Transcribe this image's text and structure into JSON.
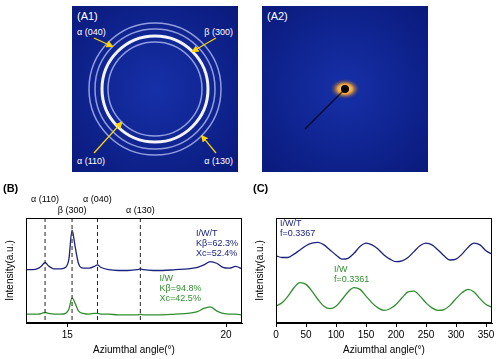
{
  "images": [
    {
      "label": "(A1)",
      "annotations": [
        "α (040)",
        "β (300)",
        "α (110)",
        "α (130)"
      ]
    },
    {
      "label": "(A2)"
    }
  ],
  "chart_data": [
    {
      "type": "line",
      "panel_label": "(B)",
      "x_label": "Aziumthal angle(°)",
      "y_label": "Intensity(a.u.)",
      "x": [
        13.7,
        13.9,
        14.1,
        14.2,
        14.3,
        14.4,
        14.6,
        14.8,
        14.95,
        15.05,
        15.15,
        15.25,
        15.35,
        15.5,
        15.7,
        15.85,
        15.95,
        16.05,
        16.3,
        16.6,
        16.9,
        17.2,
        17.3,
        17.4,
        17.7,
        18.0,
        18.4,
        18.8,
        19.1,
        19.3,
        19.5,
        19.7,
        19.9,
        20.1,
        20.3,
        20.5
      ],
      "xlim": [
        13.7,
        20.5
      ],
      "xticks": [
        15,
        20
      ],
      "ylim": [
        0,
        130
      ],
      "tick_labels": "x",
      "grid": false,
      "annotations": [
        {
          "text": "α (110)",
          "x": 14.3
        },
        {
          "text": "β (300)",
          "x": 15.15
        },
        {
          "text": "α (040)",
          "x": 15.95
        },
        {
          "text": "α (130)",
          "x": 17.3
        }
      ],
      "series": [
        {
          "name": "I/W/T",
          "color": "#1b237e",
          "notes": [
            "Kβ=62.3%",
            "Xc=52.4%"
          ],
          "values": [
            66,
            66,
            68,
            71,
            75,
            71,
            67,
            67,
            69,
            79,
            115,
            94,
            74,
            68,
            68,
            70,
            72,
            69,
            66,
            65,
            65,
            66,
            67,
            66,
            65,
            65,
            66,
            67,
            69,
            72,
            76,
            74,
            69,
            68,
            70,
            67
          ]
        },
        {
          "name": "I/W",
          "color": "#2f8f2f",
          "notes": [
            "Kβ=94.8%",
            "Xc=42.5%"
          ],
          "values": [
            11,
            11,
            11,
            12,
            13,
            12,
            11,
            11,
            12,
            17,
            31,
            24,
            15,
            12,
            11,
            12,
            12,
            11,
            11,
            10,
            10,
            10,
            11,
            10,
            10,
            10,
            11,
            12,
            14,
            18,
            20,
            15,
            12,
            11,
            11,
            10
          ]
        }
      ]
    },
    {
      "type": "line",
      "panel_label": "(C)",
      "x_label": "Aziumthal angle(°)",
      "y_label": "Intensity(a.u.)",
      "x": [
        0,
        10,
        20,
        30,
        40,
        50,
        60,
        70,
        80,
        90,
        100,
        110,
        120,
        130,
        140,
        150,
        160,
        170,
        180,
        190,
        200,
        210,
        220,
        230,
        240,
        250,
        260,
        270,
        280,
        290,
        300,
        310,
        320,
        330,
        340,
        350,
        360
      ],
      "xlim": [
        0,
        360
      ],
      "xticks": [
        0,
        50,
        100,
        150,
        200,
        250,
        300,
        350
      ],
      "ylim": [
        0,
        125
      ],
      "tick_labels": "x",
      "grid": false,
      "series": [
        {
          "name": "I/W/T",
          "color": "#1b237e",
          "notes": [
            "f=0.3367"
          ],
          "values": [
            80,
            78,
            78,
            82,
            87,
            92,
            95,
            96,
            93,
            87,
            81,
            76,
            77,
            83,
            91,
            95,
            93,
            88,
            81,
            76,
            73,
            74,
            78,
            85,
            92,
            95,
            93,
            87,
            80,
            75,
            76,
            82,
            90,
            95,
            93,
            86,
            82
          ]
        },
        {
          "name": "I/W",
          "color": "#2f8f2f",
          "notes": [
            "f=0.3361"
          ],
          "values": [
            20,
            24,
            32,
            42,
            48,
            46,
            38,
            28,
            20,
            17,
            20,
            28,
            37,
            42,
            40,
            32,
            24,
            18,
            15,
            17,
            22,
            30,
            37,
            38,
            32,
            24,
            18,
            15,
            16,
            21,
            29,
            36,
            40,
            37,
            29,
            22,
            19
          ]
        }
      ]
    }
  ]
}
